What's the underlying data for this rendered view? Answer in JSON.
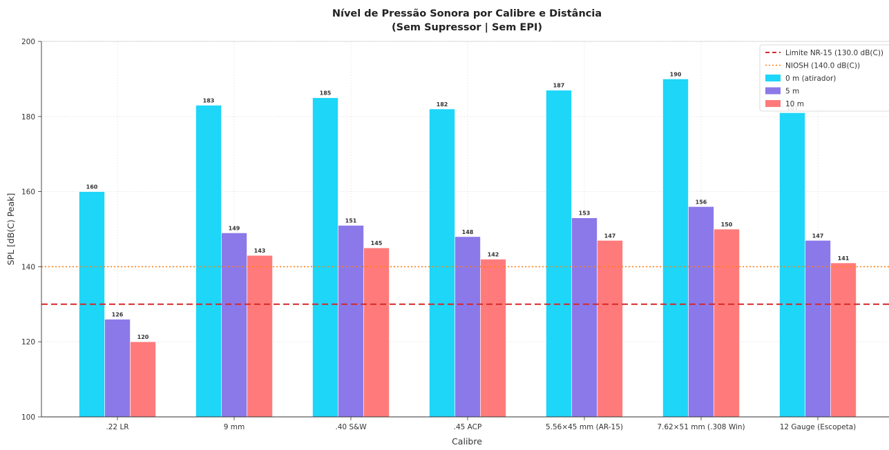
{
  "chart_data": {
    "type": "bar",
    "title_line1": "Nível de Pressão Sonora por Calibre e Distância",
    "title_line2": "(Sem Supressor | Sem EPI)",
    "xlabel": "Calibre",
    "ylabel": "SPL [dB(C) Peak]",
    "ylim": [
      100,
      200
    ],
    "yticks": [
      "100",
      "120",
      "140",
      "160",
      "180",
      "200"
    ],
    "grid": true,
    "legend_position": "top-right",
    "categories": [
      ".22 LR",
      "9 mm",
      ".40 S&W",
      ".45 ACP",
      "5.56×45 mm (AR-15)",
      "7.62×51 mm (.308 Win)",
      "12 Gauge (Escopeta)"
    ],
    "series": [
      {
        "name": "0 m (atirador)",
        "color": "#1ed6f8",
        "values": [
          160,
          183,
          185,
          182,
          187,
          190,
          181
        ],
        "labels": [
          "160",
          "183",
          "185",
          "182",
          "187",
          "190",
          "181"
        ]
      },
      {
        "name": "5 m",
        "color": "#8b79ea",
        "values": [
          126,
          149,
          151,
          148,
          153,
          156,
          147
        ],
        "labels": [
          "126",
          "149",
          "151",
          "148",
          "153",
          "156",
          "147"
        ]
      },
      {
        "name": "10 m",
        "color": "#ff7b7b",
        "values": [
          120,
          143,
          145,
          142,
          147,
          150,
          141
        ],
        "labels": [
          "120",
          "143",
          "145",
          "142",
          "147",
          "150",
          "141"
        ]
      }
    ],
    "reference_lines": [
      {
        "name": "Limite NR-15 (130.0 dB(C))",
        "value": 130,
        "color": "#d62728",
        "style": "dashed"
      },
      {
        "name": "NIOSH (140.0 dB(C))",
        "value": 140,
        "color": "#ff7f0e",
        "style": "dotted"
      }
    ]
  }
}
